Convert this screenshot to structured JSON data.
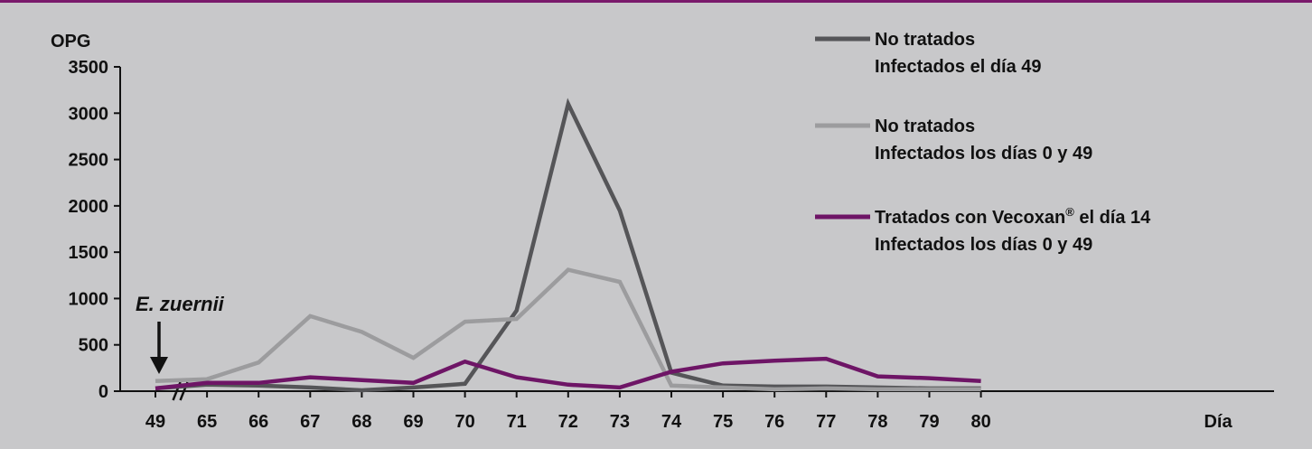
{
  "colors": {
    "background": "#c8c8ca",
    "accent_rule": "#7a1a6b",
    "axis": "#111111"
  },
  "chart_data": {
    "type": "line",
    "ylabel": "OPG",
    "xlabel": "Día",
    "categories": [
      "49",
      "65",
      "66",
      "67",
      "68",
      "69",
      "70",
      "71",
      "72",
      "73",
      "74",
      "75",
      "76",
      "77",
      "78",
      "79",
      "80"
    ],
    "yticks": [
      "0",
      "500",
      "1000",
      "1500",
      "2000",
      "2500",
      "3000",
      "3500"
    ],
    "ylim": [
      0,
      3500
    ],
    "axis_break_after": "49",
    "series": [
      {
        "name_lines": [
          "No tratados",
          "Infectados el día 49"
        ],
        "color": "#555558",
        "values": [
          30,
          70,
          60,
          40,
          10,
          40,
          80,
          870,
          3100,
          1950,
          200,
          60,
          50,
          50,
          40,
          30,
          30
        ]
      },
      {
        "name_lines": [
          "No tratados",
          "Infectados los días 0 y 49"
        ],
        "color": "#9c9c9e",
        "values": [
          110,
          130,
          310,
          810,
          640,
          360,
          750,
          780,
          1310,
          1180,
          60,
          40,
          20,
          30,
          20,
          20,
          20
        ]
      },
      {
        "name_lines": [
          "Tratados con Vecoxan",
          "Infectados los días 0 y 49"
        ],
        "name_suffix": " el día 14",
        "trademark": "®",
        "color": "#6e1566",
        "values": [
          30,
          90,
          90,
          150,
          120,
          90,
          320,
          150,
          70,
          40,
          210,
          300,
          330,
          350,
          160,
          140,
          110
        ]
      }
    ],
    "annotation": {
      "text": "E. zuernii",
      "at_category": "49",
      "style": "arrow-down"
    },
    "legend_position": "top-right",
    "grid": false
  }
}
